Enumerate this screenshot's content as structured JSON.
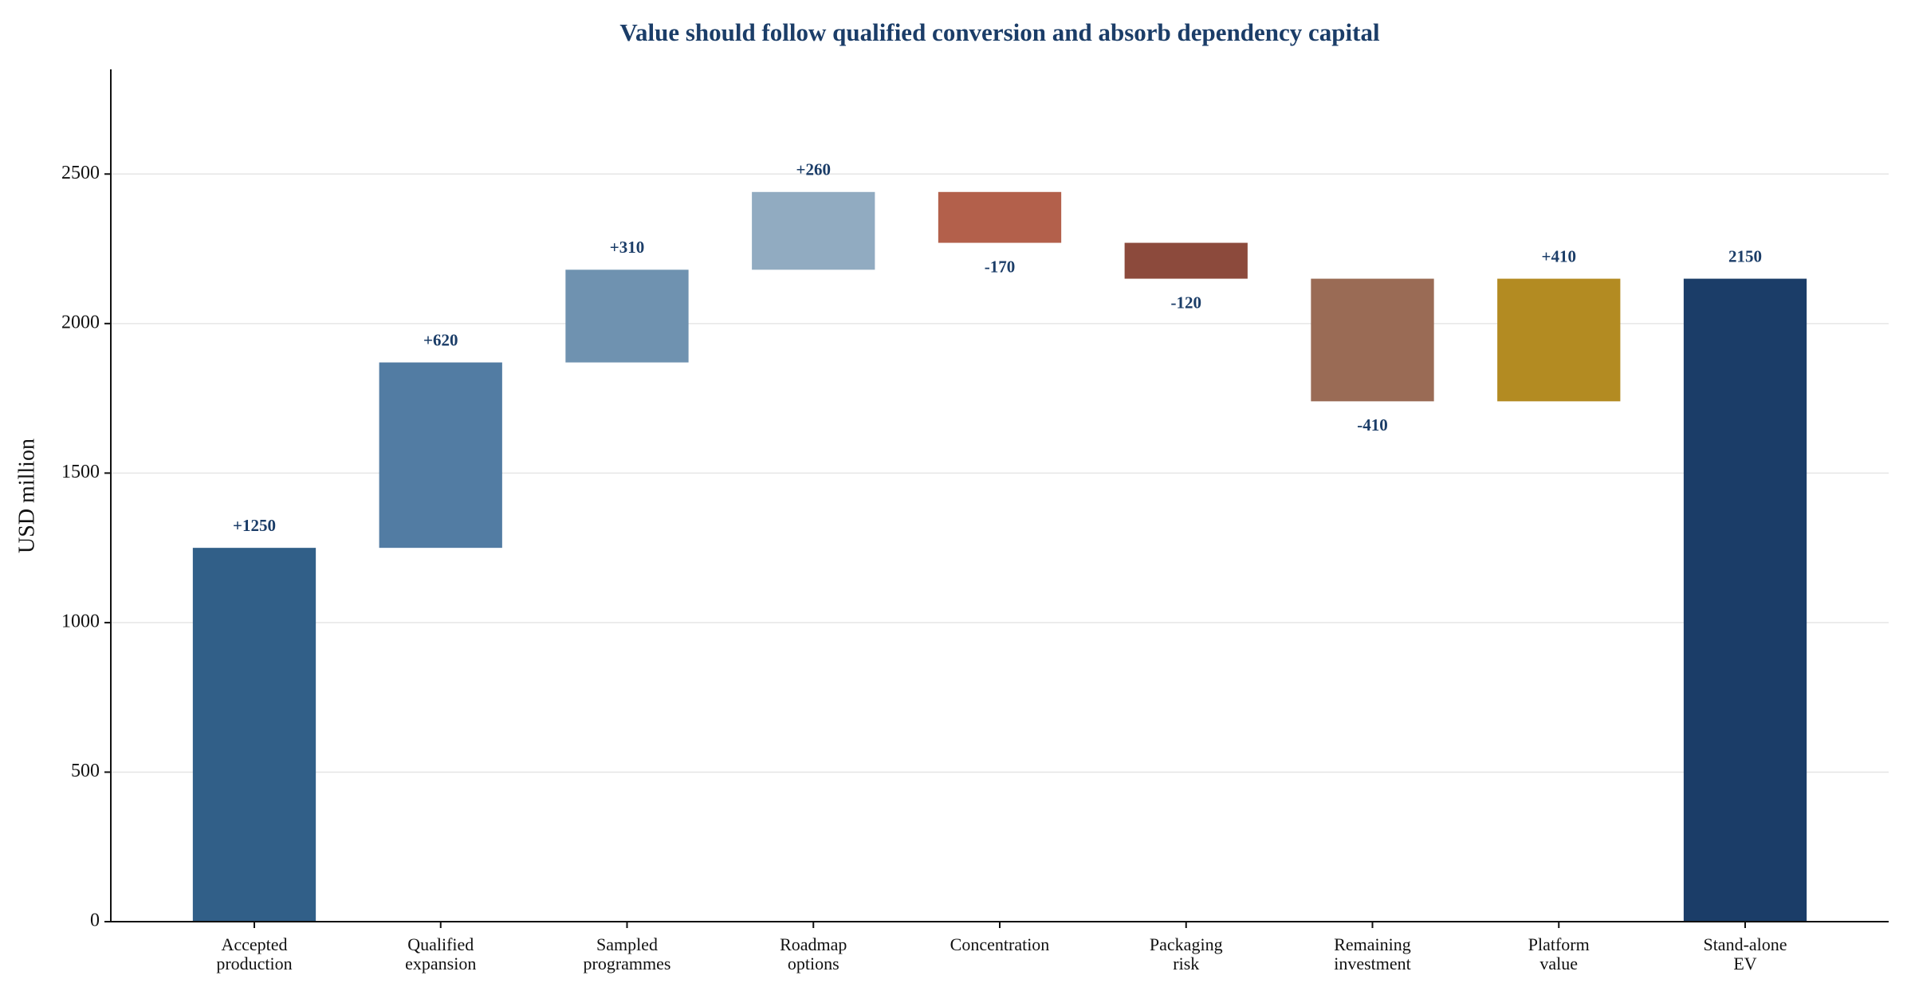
{
  "chart_data": {
    "type": "waterfall",
    "title": "Value should follow qualified conversion and absorb dependency capital",
    "y_label": "USD million",
    "categories": [
      "Accepted\nproduction",
      "Qualified\nexpansion",
      "Sampled\nprogrammes",
      "Roadmap\noptions",
      "Concentration",
      "Packaging\nrisk",
      "Remaining\ninvestment",
      "Platform\nvalue",
      "Stand-alone\nEV"
    ],
    "values": [
      1250,
      620,
      310,
      260,
      -170,
      -120,
      -410,
      410,
      2150
    ],
    "value_labels": [
      "+1250",
      "+620",
      "+310",
      "+260",
      "-170",
      "-120",
      "-410",
      "+410",
      "2150"
    ],
    "measure": [
      "relative",
      "relative",
      "relative",
      "relative",
      "relative",
      "relative",
      "relative",
      "relative",
      "total"
    ],
    "colors": [
      "#315f88",
      "#527ca3",
      "#6f92b0",
      "#91abc1",
      "#b3604b",
      "#8c4a3c",
      "#9a6b55",
      "#b38b22",
      "#1b3d68"
    ],
    "ylim": [
      0,
      2850
    ],
    "yticks": [
      0,
      500,
      1000,
      1500,
      2000,
      2500
    ],
    "grid": true
  }
}
